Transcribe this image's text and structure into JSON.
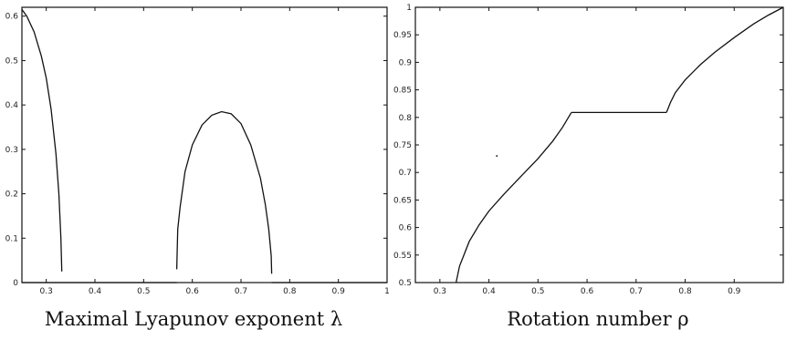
{
  "chart_data": [
    {
      "type": "line",
      "caption": "Maximal Lyapunov exponent λ",
      "xlim": [
        0.25,
        1.0
      ],
      "ylim": [
        0,
        0.62
      ],
      "xticks": [
        "0.3",
        "0.4",
        "0.5",
        "0.6",
        "0.7",
        "0.8",
        "0.9",
        "1"
      ],
      "yticks": [
        "0",
        "0.1",
        "0.2",
        "0.3",
        "0.4",
        "0.5",
        "0.6"
      ],
      "xtick_values": [
        0.3,
        0.4,
        0.5,
        0.6,
        0.7,
        0.8,
        0.9,
        1.0
      ],
      "ytick_values": [
        0,
        0.1,
        0.2,
        0.3,
        0.4,
        0.5,
        0.6
      ],
      "grid": false,
      "series": [
        {
          "segments": [
            [
              [
                0.25,
                0.615
              ],
              [
                0.26,
                0.6
              ],
              [
                0.275,
                0.565
              ],
              [
                0.29,
                0.51
              ],
              [
                0.3,
                0.46
              ],
              [
                0.31,
                0.39
              ],
              [
                0.32,
                0.29
              ],
              [
                0.326,
                0.2
              ],
              [
                0.33,
                0.1
              ],
              [
                0.332,
                0.025
              ]
            ],
            [
              [
                0.25,
                0.0
              ],
              [
                0.332,
                0.0
              ]
            ],
            [
              [
                0.332,
                0.0
              ],
              [
                0.568,
                0.0
              ]
            ],
            [
              [
                0.568,
                0.03
              ],
              [
                0.57,
                0.12
              ],
              [
                0.575,
                0.17
              ],
              [
                0.585,
                0.25
              ],
              [
                0.6,
                0.31
              ],
              [
                0.62,
                0.355
              ],
              [
                0.64,
                0.377
              ],
              [
                0.66,
                0.385
              ],
              [
                0.68,
                0.38
              ],
              [
                0.7,
                0.358
              ],
              [
                0.72,
                0.31
              ],
              [
                0.74,
                0.235
              ],
              [
                0.75,
                0.175
              ],
              [
                0.757,
                0.12
              ],
              [
                0.762,
                0.06
              ],
              [
                0.763,
                0.02
              ]
            ],
            [
              [
                0.763,
                0.0
              ],
              [
                1.0,
                0.0
              ]
            ]
          ]
        }
      ]
    },
    {
      "type": "line",
      "caption": "Rotation number ρ",
      "xlim": [
        0.25,
        1.0
      ],
      "ylim": [
        0.5,
        1.0
      ],
      "xticks": [
        "0.3",
        "0.4",
        "0.5",
        "0.6",
        "0.7",
        "0.8",
        "0.9"
      ],
      "yticks": [
        "0.5",
        "0.55",
        "0.6",
        "0.65",
        "0.7",
        "0.75",
        "0.8",
        "0.85",
        "0.9",
        "0.95",
        "1"
      ],
      "xtick_values": [
        0.3,
        0.4,
        0.5,
        0.6,
        0.7,
        0.8,
        0.9
      ],
      "ytick_values": [
        0.5,
        0.55,
        0.6,
        0.65,
        0.7,
        0.75,
        0.8,
        0.85,
        0.9,
        0.95,
        1.0
      ],
      "grid": false,
      "series": [
        {
          "segments": [
            [
              [
                0.333,
                0.5
              ],
              [
                0.34,
                0.53
              ],
              [
                0.36,
                0.575
              ],
              [
                0.38,
                0.605
              ],
              [
                0.4,
                0.63
              ],
              [
                0.43,
                0.66
              ],
              [
                0.46,
                0.688
              ],
              [
                0.5,
                0.725
              ],
              [
                0.53,
                0.757
              ],
              [
                0.55,
                0.782
              ],
              [
                0.56,
                0.797
              ],
              [
                0.568,
                0.809
              ]
            ],
            [
              [
                0.568,
                0.809
              ],
              [
                0.762,
                0.809
              ]
            ],
            [
              [
                0.762,
                0.809
              ],
              [
                0.77,
                0.827
              ],
              [
                0.78,
                0.845
              ],
              [
                0.8,
                0.868
              ],
              [
                0.83,
                0.895
              ],
              [
                0.86,
                0.918
              ],
              [
                0.9,
                0.945
              ],
              [
                0.94,
                0.97
              ],
              [
                0.97,
                0.986
              ],
              [
                1.0,
                1.0
              ]
            ]
          ],
          "dots": [
            [
              0.416,
              0.73
            ]
          ]
        }
      ]
    }
  ]
}
